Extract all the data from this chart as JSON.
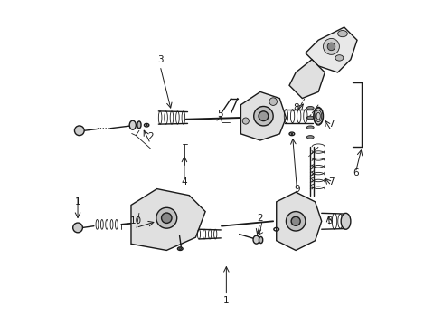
{
  "bg_color": "#ffffff",
  "line_color": "#1a1a1a",
  "fig_width": 4.9,
  "fig_height": 3.6,
  "dpi": 100,
  "labels": {
    "1a": [
      0.055,
      0.38,
      "1"
    ],
    "1b": [
      0.515,
      0.075,
      "1"
    ],
    "2a": [
      0.28,
      0.58,
      "2"
    ],
    "2b": [
      0.62,
      0.33,
      "2"
    ],
    "3a": [
      0.31,
      0.82,
      "3"
    ],
    "3b": [
      0.835,
      0.32,
      "3"
    ],
    "4": [
      0.385,
      0.44,
      "4"
    ],
    "5": [
      0.495,
      0.65,
      "5"
    ],
    "6": [
      0.915,
      0.47,
      "6"
    ],
    "7a": [
      0.84,
      0.62,
      "7"
    ],
    "7b": [
      0.84,
      0.44,
      "7"
    ],
    "8": [
      0.73,
      0.67,
      "8"
    ],
    "9": [
      0.735,
      0.42,
      "9"
    ],
    "10": [
      0.235,
      0.32,
      "10"
    ]
  }
}
